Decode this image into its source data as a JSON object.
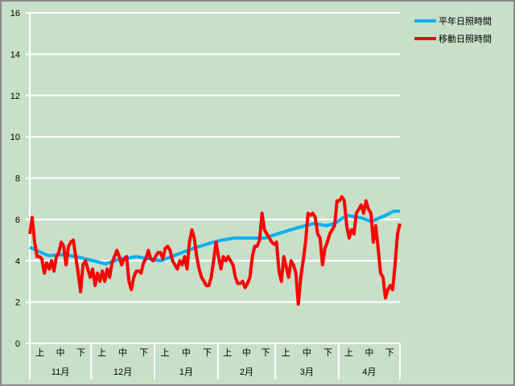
{
  "chart_data": {
    "type": "line",
    "title": "",
    "xlabel": "",
    "ylabel": "",
    "ylim": [
      0,
      16
    ],
    "yticks": [
      0,
      2,
      4,
      6,
      8,
      10,
      12,
      14,
      16
    ],
    "grid": true,
    "legend_position": "top-right",
    "x_days_total": 181,
    "months": [
      {
        "label": "11月",
        "days": 30
      },
      {
        "label": "12月",
        "days": 31
      },
      {
        "label": "1月",
        "days": 31
      },
      {
        "label": "2月",
        "days": 28
      },
      {
        "label": "3月",
        "days": 31
      },
      {
        "label": "4月",
        "days": 30
      }
    ],
    "subperiods": [
      "上",
      "中",
      "下"
    ],
    "series": [
      {
        "name": "平年日照時間",
        "color": "#00b0f0",
        "points": [
          [
            0,
            4.65
          ],
          [
            9,
            4.25
          ],
          [
            17,
            4.3
          ],
          [
            25,
            4.15
          ],
          [
            37,
            3.85
          ],
          [
            43,
            4.05
          ],
          [
            52,
            4.2
          ],
          [
            64,
            4.0
          ],
          [
            72,
            4.3
          ],
          [
            80,
            4.6
          ],
          [
            88,
            4.85
          ],
          [
            94,
            5.0
          ],
          [
            100,
            5.1
          ],
          [
            115,
            5.1
          ],
          [
            121,
            5.3
          ],
          [
            131,
            5.6
          ],
          [
            139,
            5.8
          ],
          [
            145,
            5.7
          ],
          [
            149,
            5.8
          ],
          [
            155,
            6.2
          ],
          [
            163,
            6.05
          ],
          [
            167,
            5.9
          ],
          [
            174,
            6.2
          ],
          [
            178,
            6.4
          ],
          [
            181,
            6.4
          ]
        ]
      },
      {
        "name": "移動日照時間",
        "color": "#ff0000",
        "values": [
          5.3,
          6.1,
          4.9,
          4.2,
          4.2,
          4.1,
          3.4,
          3.9,
          3.6,
          4.0,
          3.5,
          4.2,
          4.4,
          4.9,
          4.7,
          3.8,
          4.7,
          4.9,
          5.0,
          4.2,
          3.4,
          2.5,
          3.8,
          4.0,
          3.6,
          3.2,
          3.6,
          2.8,
          3.4,
          3.0,
          3.5,
          3.0,
          3.6,
          3.2,
          3.9,
          4.2,
          4.5,
          4.2,
          3.8,
          4.1,
          4.2,
          3.0,
          2.6,
          3.2,
          3.5,
          3.5,
          3.4,
          3.9,
          4.1,
          4.5,
          4.1,
          4.0,
          4.2,
          4.4,
          4.4,
          4.1,
          4.6,
          4.7,
          4.5,
          4.0,
          3.8,
          3.6,
          4.0,
          3.8,
          4.2,
          3.6,
          4.9,
          5.5,
          5.1,
          4.2,
          3.6,
          3.2,
          3.0,
          2.8,
          2.8,
          3.2,
          4.0,
          4.9,
          4.2,
          3.6,
          4.2,
          4.0,
          4.2,
          4.0,
          3.8,
          3.2,
          2.9,
          2.9,
          3.0,
          2.7,
          2.9,
          3.2,
          4.2,
          4.7,
          4.7,
          5.0,
          6.3,
          5.5,
          5.3,
          5.1,
          4.9,
          4.8,
          4.9,
          3.5,
          3.0,
          4.2,
          3.7,
          3.2,
          4.0,
          3.8,
          3.4,
          1.9,
          3.2,
          4.0,
          4.9,
          6.3,
          6.2,
          6.3,
          6.1,
          5.3,
          5.1,
          3.8,
          4.6,
          4.9,
          5.3,
          5.5,
          5.7,
          6.9,
          6.9,
          7.1,
          6.9,
          5.7,
          5.1,
          5.5,
          5.3,
          6.3,
          6.5,
          6.7,
          6.3,
          6.9,
          6.5,
          6.3,
          4.9,
          5.7,
          4.6,
          3.4,
          3.2,
          2.2,
          2.6,
          2.8,
          2.6,
          3.8,
          5.3,
          5.8
        ]
      }
    ]
  }
}
